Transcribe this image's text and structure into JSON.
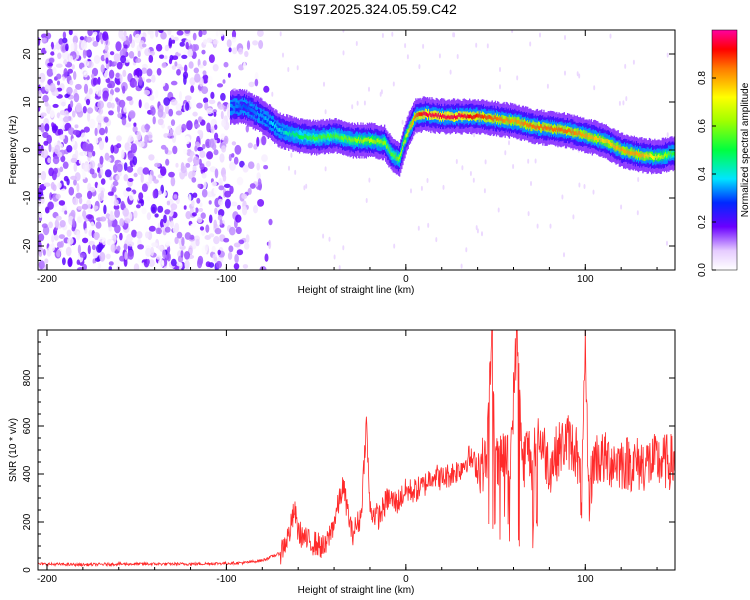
{
  "title": "S197.2025.324.05.59.C42",
  "colors": {
    "snr_line": "#ff2a2a",
    "signal_purple": "#6a00ff",
    "axis": "#000000"
  },
  "chart_data": [
    {
      "type": "heatmap",
      "xlabel": "Height of straight line (km)",
      "ylabel": "Frequency (Hz)",
      "xlim": [
        -205,
        150
      ],
      "ylim": [
        -25,
        25
      ],
      "x_ticks": [
        -200,
        -100,
        0,
        100
      ],
      "x_tick_labels": [
        "-200",
        "-100",
        "0",
        "100"
      ],
      "y_ticks": [
        -20,
        -10,
        0,
        10,
        20
      ],
      "y_tick_labels": [
        "-20",
        "-10",
        "0",
        "10",
        "20"
      ],
      "grid": false,
      "colorbar": {
        "label": "Normalized spectral amplitude",
        "range": [
          0,
          1
        ],
        "ticks": [
          0.0,
          0.2,
          0.4,
          0.6,
          0.8
        ],
        "tick_labels": [
          "0.0",
          "0.2",
          "0.4",
          "0.6",
          "0.8"
        ],
        "colormap": "rainbow (white-purple-blue-cyan-green-yellow-red-magenta)"
      },
      "signal_track": {
        "x": [
          -98,
          -90,
          -80,
          -70,
          -60,
          -50,
          -40,
          -30,
          -20,
          -12,
          -8,
          -4,
          0,
          5,
          10,
          20,
          30,
          40,
          50,
          60,
          70,
          80,
          90,
          100,
          110,
          120,
          130,
          140,
          150
        ],
        "frequency": [
          9,
          9,
          7,
          4,
          3,
          2.5,
          3,
          2,
          2,
          1.5,
          -1,
          -2,
          3,
          7,
          7.5,
          7,
          7,
          7,
          6.5,
          6,
          5,
          4.5,
          4,
          3,
          2,
          0,
          -1,
          -1.5,
          -0.5
        ],
        "amplitude": [
          0.35,
          0.3,
          0.35,
          0.4,
          0.5,
          0.55,
          0.55,
          0.6,
          0.65,
          0.6,
          0.55,
          0.6,
          0.7,
          0.85,
          0.95,
          0.95,
          0.95,
          0.9,
          0.85,
          0.8,
          0.85,
          0.85,
          0.85,
          0.8,
          0.75,
          0.8,
          0.8,
          0.7,
          0.5
        ]
      },
      "noise_region": {
        "x_from": -205,
        "x_to": -75,
        "amplitude": [
          0.0,
          0.2
        ]
      }
    },
    {
      "type": "line",
      "xlabel": "Height of straight line (km)",
      "ylabel": "SNR (10 * v/v)",
      "xlim": [
        -205,
        150
      ],
      "ylim": [
        0,
        1000
      ],
      "x_ticks": [
        -200,
        -100,
        0,
        100
      ],
      "x_tick_labels": [
        "-200",
        "-100",
        "0",
        "100"
      ],
      "y_ticks": [
        0,
        200,
        400,
        600,
        800
      ],
      "y_tick_labels": [
        "0",
        "200",
        "400",
        "600",
        "800"
      ],
      "grid": false,
      "series": [
        {
          "x": [
            -205,
            -180,
            -160,
            -140,
            -120,
            -100,
            -90,
            -80,
            -70,
            -65,
            -62,
            -60,
            -55,
            -50,
            -45,
            -40,
            -35,
            -30,
            -25,
            -22,
            -20,
            -15,
            -10,
            -5,
            0,
            5,
            10,
            15,
            20,
            25,
            30,
            35,
            40,
            45,
            48,
            50,
            52,
            55,
            58,
            60,
            62,
            65,
            68,
            70,
            75,
            80,
            85,
            90,
            95,
            98,
            100,
            102,
            105,
            110,
            120,
            130,
            140,
            150
          ],
          "values": [
            25,
            22,
            25,
            25,
            25,
            28,
            30,
            40,
            70,
            150,
            250,
            160,
            120,
            110,
            90,
            200,
            350,
            150,
            220,
            620,
            250,
            220,
            300,
            280,
            330,
            330,
            350,
            400,
            380,
            400,
            420,
            470,
            430,
            450,
            1000,
            450,
            420,
            500,
            420,
            720,
            1000,
            430,
            520,
            440,
            550,
            430,
            500,
            540,
            500,
            300,
            890,
            300,
            470,
            460,
            450,
            440,
            450,
            450
          ]
        }
      ]
    }
  ]
}
